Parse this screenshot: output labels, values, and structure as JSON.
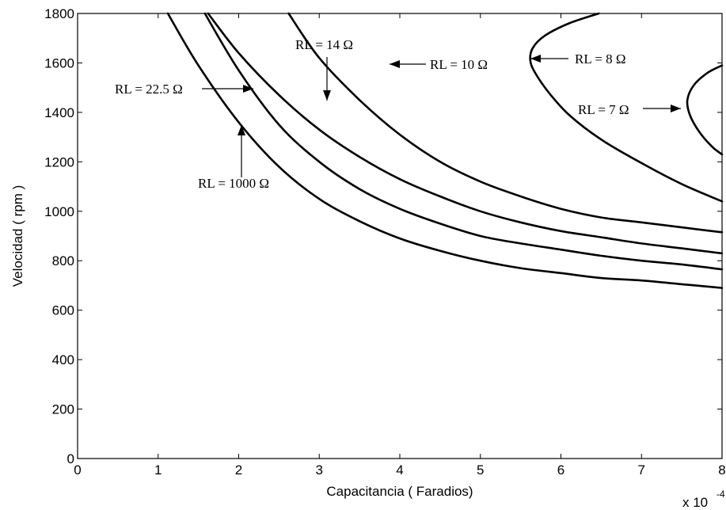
{
  "chart_data": {
    "type": "line",
    "title": "",
    "xlabel": "Capacitancia ( Faradios)",
    "ylabel": "Velocidad ( rpm )",
    "x_multiplier_label": "x 10",
    "x_multiplier_exponent": "-4",
    "xlim": [
      0,
      8
    ],
    "ylim": [
      0,
      1800
    ],
    "xticks": [
      "0",
      "1",
      "2",
      "3",
      "4",
      "5",
      "6",
      "7",
      "8"
    ],
    "yticks": [
      "0",
      "200",
      "400",
      "600",
      "800",
      "1000",
      "1200",
      "1400",
      "1600",
      "1800"
    ],
    "grid": false,
    "legend": "none",
    "series": [
      {
        "name": "RL = 1000 Ω",
        "x": [
          1.12,
          1.5,
          2.0,
          2.5,
          3.0,
          3.5,
          4.0,
          4.5,
          5.0,
          5.5,
          6.0,
          6.5,
          7.0,
          7.5,
          8.0
        ],
        "y": [
          1800,
          1590,
          1360,
          1180,
          1050,
          960,
          890,
          840,
          800,
          770,
          750,
          730,
          720,
          705,
          690
        ]
      },
      {
        "name": "RL = 22.5 Ω",
        "x": [
          1.58,
          2.0,
          2.5,
          3.0,
          3.5,
          4.0,
          4.5,
          5.0,
          5.5,
          6.0,
          6.5,
          7.0,
          7.5,
          8.0
        ],
        "y": [
          1800,
          1570,
          1350,
          1200,
          1090,
          1010,
          950,
          900,
          870,
          845,
          820,
          800,
          785,
          765
        ]
      },
      {
        "name": "RL = 14 Ω",
        "x": [
          1.62,
          2.0,
          2.5,
          3.0,
          3.5,
          4.0,
          4.5,
          5.0,
          5.5,
          6.0,
          6.5,
          7.0,
          7.5,
          8.0
        ],
        "y": [
          1800,
          1640,
          1470,
          1330,
          1220,
          1130,
          1060,
          1000,
          955,
          920,
          895,
          870,
          850,
          830
        ]
      },
      {
        "name": "RL = 10 Ω",
        "x": [
          2.62,
          3.0,
          3.5,
          4.0,
          4.5,
          5.0,
          5.5,
          6.0,
          6.5,
          7.0,
          7.5,
          8.0
        ],
        "y": [
          1800,
          1620,
          1450,
          1310,
          1200,
          1120,
          1060,
          1010,
          975,
          955,
          935,
          915
        ]
      },
      {
        "name": "RL = 8 Ω",
        "x": [
          6.47,
          6.1,
          5.8,
          5.65,
          5.62,
          5.68,
          5.85,
          6.1,
          6.5,
          7.0,
          7.5,
          8.0
        ],
        "y": [
          1800,
          1760,
          1710,
          1660,
          1610,
          1560,
          1480,
          1390,
          1290,
          1195,
          1110,
          1040
        ]
      },
      {
        "name": "RL = 7 Ω",
        "x": [
          8.0,
          7.82,
          7.65,
          7.57,
          7.6,
          7.72,
          7.88,
          8.0
        ],
        "y": [
          1590,
          1560,
          1510,
          1450,
          1390,
          1320,
          1260,
          1230
        ]
      }
    ],
    "annotations": [
      {
        "text": "RL = 1000 Ω"
      },
      {
        "text": "RL = 22.5 Ω"
      },
      {
        "text": "RL = 14 Ω"
      },
      {
        "text": "RL = 10 Ω"
      },
      {
        "text": "RL = 8 Ω"
      },
      {
        "text": "RL = 7 Ω"
      }
    ]
  }
}
